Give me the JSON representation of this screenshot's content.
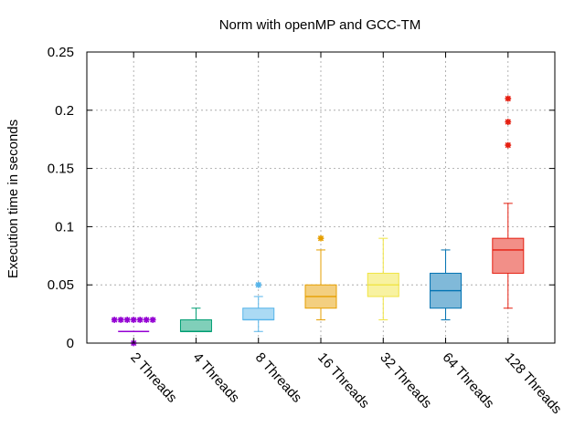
{
  "chart_data": {
    "type": "box",
    "title": "Norm with openMP and GCC-TM",
    "xlabel": "",
    "ylabel": "Execution time in seconds",
    "ylim": [
      0,
      0.25
    ],
    "yticks": [
      0,
      0.05,
      0.1,
      0.15,
      0.2,
      0.25
    ],
    "ytick_labels": [
      "0",
      "0.05",
      "0.1",
      "0.15",
      "0.2",
      "0.25"
    ],
    "grid": true,
    "categories": [
      "2 Threads",
      "4 Threads",
      "8 Threads",
      "16 Threads",
      "32 Threads",
      "64 Threads",
      "128 Threads"
    ],
    "boxes": [
      {
        "min": 0.01,
        "q1": 0.01,
        "median": 0.01,
        "q3": 0.01,
        "max": 0.01,
        "outliers": [
          0.02,
          0.02,
          0.02,
          0.02,
          0.02,
          0.02,
          0.02,
          0.0
        ],
        "color": "#9400d3"
      },
      {
        "min": 0.01,
        "q1": 0.01,
        "median": 0.01,
        "q3": 0.02,
        "max": 0.03,
        "outliers": [],
        "color": "#009e73"
      },
      {
        "min": 0.01,
        "q1": 0.02,
        "median": 0.02,
        "q3": 0.03,
        "max": 0.04,
        "outliers": [
          0.05
        ],
        "color": "#56b4e9"
      },
      {
        "min": 0.02,
        "q1": 0.03,
        "median": 0.04,
        "q3": 0.05,
        "max": 0.08,
        "outliers": [
          0.09
        ],
        "color": "#e69f00"
      },
      {
        "min": 0.02,
        "q1": 0.04,
        "median": 0.05,
        "q3": 0.06,
        "max": 0.09,
        "outliers": [],
        "color": "#f0e442"
      },
      {
        "min": 0.02,
        "q1": 0.03,
        "median": 0.045,
        "q3": 0.06,
        "max": 0.08,
        "outliers": [],
        "color": "#0072b2"
      },
      {
        "min": 0.03,
        "q1": 0.06,
        "median": 0.08,
        "q3": 0.09,
        "max": 0.12,
        "outliers": [
          0.17,
          0.19,
          0.21
        ],
        "color": "#e51e10"
      }
    ]
  }
}
